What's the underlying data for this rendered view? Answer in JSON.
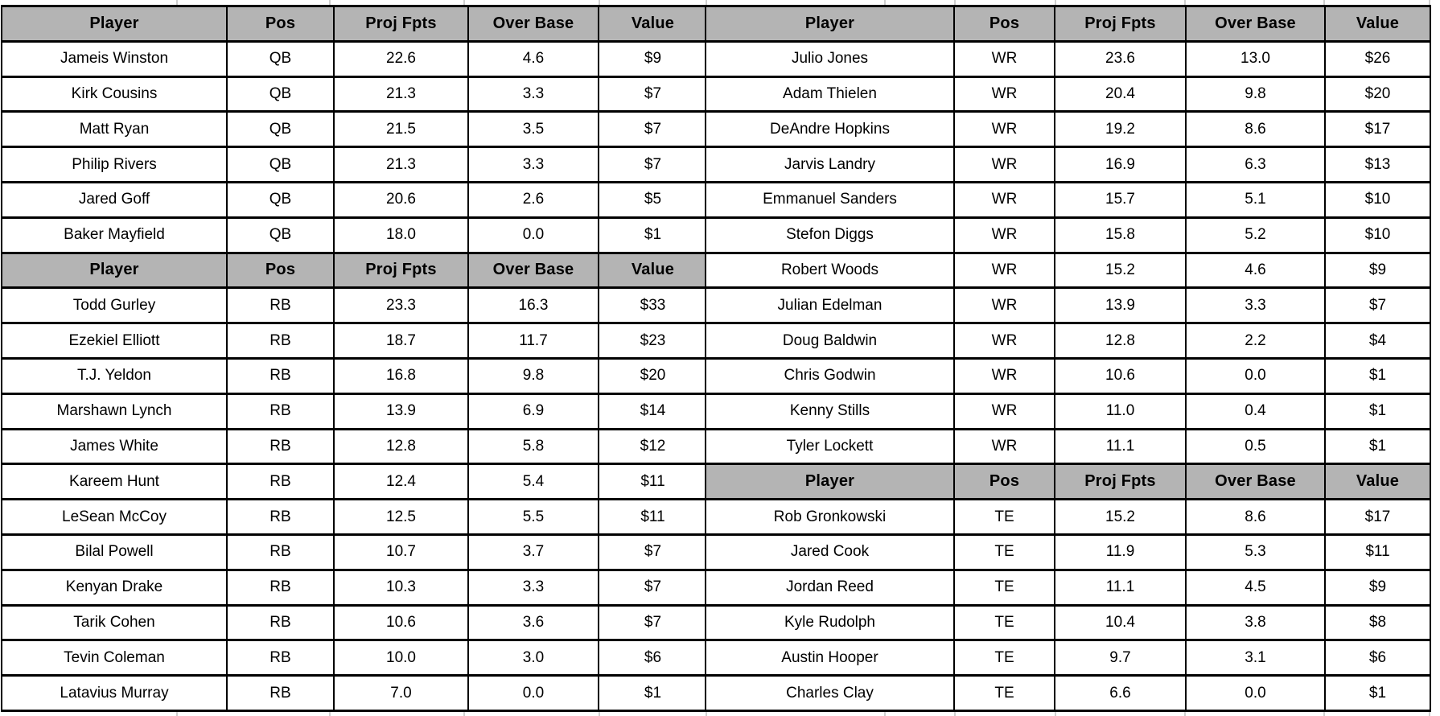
{
  "colors": {
    "header_bg": "#b4b4b4",
    "cell_bg": "#ffffff",
    "sheet_bg": "#ffffff",
    "border": "#000000",
    "gridline": "#cfcfcf",
    "text": "#000000"
  },
  "chart_data": [
    {
      "type": "table",
      "columns": [
        "Player",
        "Pos",
        "Proj Fpts",
        "Over Base",
        "Value"
      ],
      "sections": [
        {
          "group": "QB",
          "rows": [
            [
              "Jameis Winston",
              "QB",
              "22.6",
              "4.6",
              "$9"
            ],
            [
              "Kirk Cousins",
              "QB",
              "21.3",
              "3.3",
              "$7"
            ],
            [
              "Matt Ryan",
              "QB",
              "21.5",
              "3.5",
              "$7"
            ],
            [
              "Philip Rivers",
              "QB",
              "21.3",
              "3.3",
              "$7"
            ],
            [
              "Jared Goff",
              "QB",
              "20.6",
              "2.6",
              "$5"
            ],
            [
              "Baker Mayfield",
              "QB",
              "18.0",
              "0.0",
              "$1"
            ]
          ]
        },
        {
          "group": "RB",
          "rows": [
            [
              "Todd Gurley",
              "RB",
              "23.3",
              "16.3",
              "$33"
            ],
            [
              "Ezekiel Elliott",
              "RB",
              "18.7",
              "11.7",
              "$23"
            ],
            [
              "T.J. Yeldon",
              "RB",
              "16.8",
              "9.8",
              "$20"
            ],
            [
              "Marshawn Lynch",
              "RB",
              "13.9",
              "6.9",
              "$14"
            ],
            [
              "James White",
              "RB",
              "12.8",
              "5.8",
              "$12"
            ],
            [
              "Kareem Hunt",
              "RB",
              "12.4",
              "5.4",
              "$11"
            ],
            [
              "LeSean McCoy",
              "RB",
              "12.5",
              "5.5",
              "$11"
            ],
            [
              "Bilal Powell",
              "RB",
              "10.7",
              "3.7",
              "$7"
            ],
            [
              "Kenyan Drake",
              "RB",
              "10.3",
              "3.3",
              "$7"
            ],
            [
              "Tarik Cohen",
              "RB",
              "10.6",
              "3.6",
              "$7"
            ],
            [
              "Tevin Coleman",
              "RB",
              "10.0",
              "3.0",
              "$6"
            ],
            [
              "Latavius Murray",
              "RB",
              "7.0",
              "0.0",
              "$1"
            ]
          ]
        }
      ]
    },
    {
      "type": "table",
      "columns": [
        "Player",
        "Pos",
        "Proj Fpts",
        "Over Base",
        "Value"
      ],
      "sections": [
        {
          "group": "WR",
          "rows": [
            [
              "Julio Jones",
              "WR",
              "23.6",
              "13.0",
              "$26"
            ],
            [
              "Adam Thielen",
              "WR",
              "20.4",
              "9.8",
              "$20"
            ],
            [
              "DeAndre Hopkins",
              "WR",
              "19.2",
              "8.6",
              "$17"
            ],
            [
              "Jarvis Landry",
              "WR",
              "16.9",
              "6.3",
              "$13"
            ],
            [
              "Emmanuel Sanders",
              "WR",
              "15.7",
              "5.1",
              "$10"
            ],
            [
              "Stefon Diggs",
              "WR",
              "15.8",
              "5.2",
              "$10"
            ],
            [
              "Robert Woods",
              "WR",
              "15.2",
              "4.6",
              "$9"
            ],
            [
              "Julian Edelman",
              "WR",
              "13.9",
              "3.3",
              "$7"
            ],
            [
              "Doug Baldwin",
              "WR",
              "12.8",
              "2.2",
              "$4"
            ],
            [
              "Chris Godwin",
              "WR",
              "10.6",
              "0.0",
              "$1"
            ],
            [
              "Kenny Stills",
              "WR",
              "11.0",
              "0.4",
              "$1"
            ],
            [
              "Tyler Lockett",
              "WR",
              "11.1",
              "0.5",
              "$1"
            ]
          ]
        },
        {
          "group": "TE",
          "rows": [
            [
              "Rob Gronkowski",
              "TE",
              "15.2",
              "8.6",
              "$17"
            ],
            [
              "Jared Cook",
              "TE",
              "11.9",
              "5.3",
              "$11"
            ],
            [
              "Jordan Reed",
              "TE",
              "11.1",
              "4.5",
              "$9"
            ],
            [
              "Kyle Rudolph",
              "TE",
              "10.4",
              "3.8",
              "$8"
            ],
            [
              "Austin Hooper",
              "TE",
              "9.7",
              "3.1",
              "$6"
            ],
            [
              "Charles Clay",
              "TE",
              "6.6",
              "0.0",
              "$1"
            ]
          ]
        }
      ]
    }
  ]
}
